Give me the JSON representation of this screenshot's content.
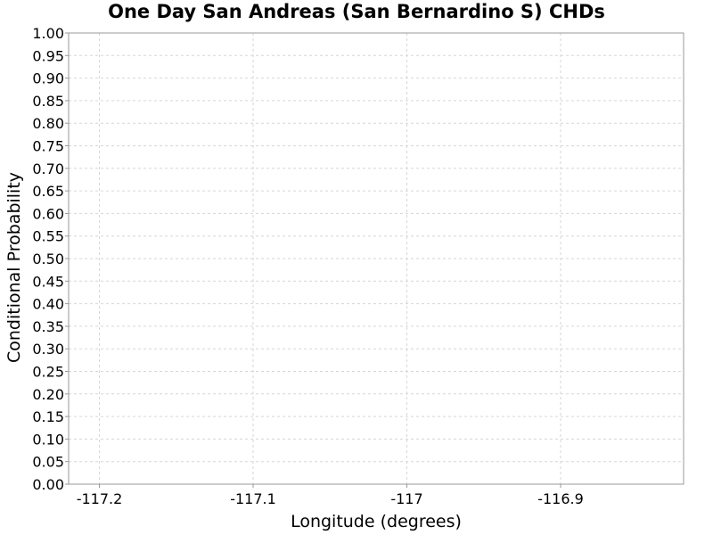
{
  "chart_data": {
    "type": "line",
    "title": "One Day San Andreas (San Bernardino S) CHDs",
    "xlabel": "Longitude (degrees)",
    "ylabel": "Conditional Probability",
    "xlim": [
      -117.22,
      -116.82
    ],
    "ylim": [
      0.0,
      1.0
    ],
    "x_ticks": [
      -117.2,
      -117.1,
      -117.0,
      -116.9
    ],
    "x_tick_labels": [
      "-117.2",
      "-117.1",
      "-117",
      "-116.9"
    ],
    "y_ticks": [
      0.0,
      0.05,
      0.1,
      0.15,
      0.2,
      0.25,
      0.3,
      0.35,
      0.4,
      0.45,
      0.5,
      0.55,
      0.6,
      0.65,
      0.7,
      0.75,
      0.8,
      0.85,
      0.9,
      0.95,
      1.0
    ],
    "y_tick_labels": [
      "0.00",
      "0.05",
      "0.10",
      "0.15",
      "0.20",
      "0.25",
      "0.30",
      "0.35",
      "0.40",
      "0.45",
      "0.50",
      "0.55",
      "0.60",
      "0.65",
      "0.70",
      "0.75",
      "0.80",
      "0.85",
      "0.90",
      "0.95",
      "1.00"
    ],
    "grid": true,
    "series": [],
    "colors": {
      "background": "#ffffff",
      "grid": "#d6d6d6",
      "axis": "#999999",
      "text": "#000000"
    }
  }
}
